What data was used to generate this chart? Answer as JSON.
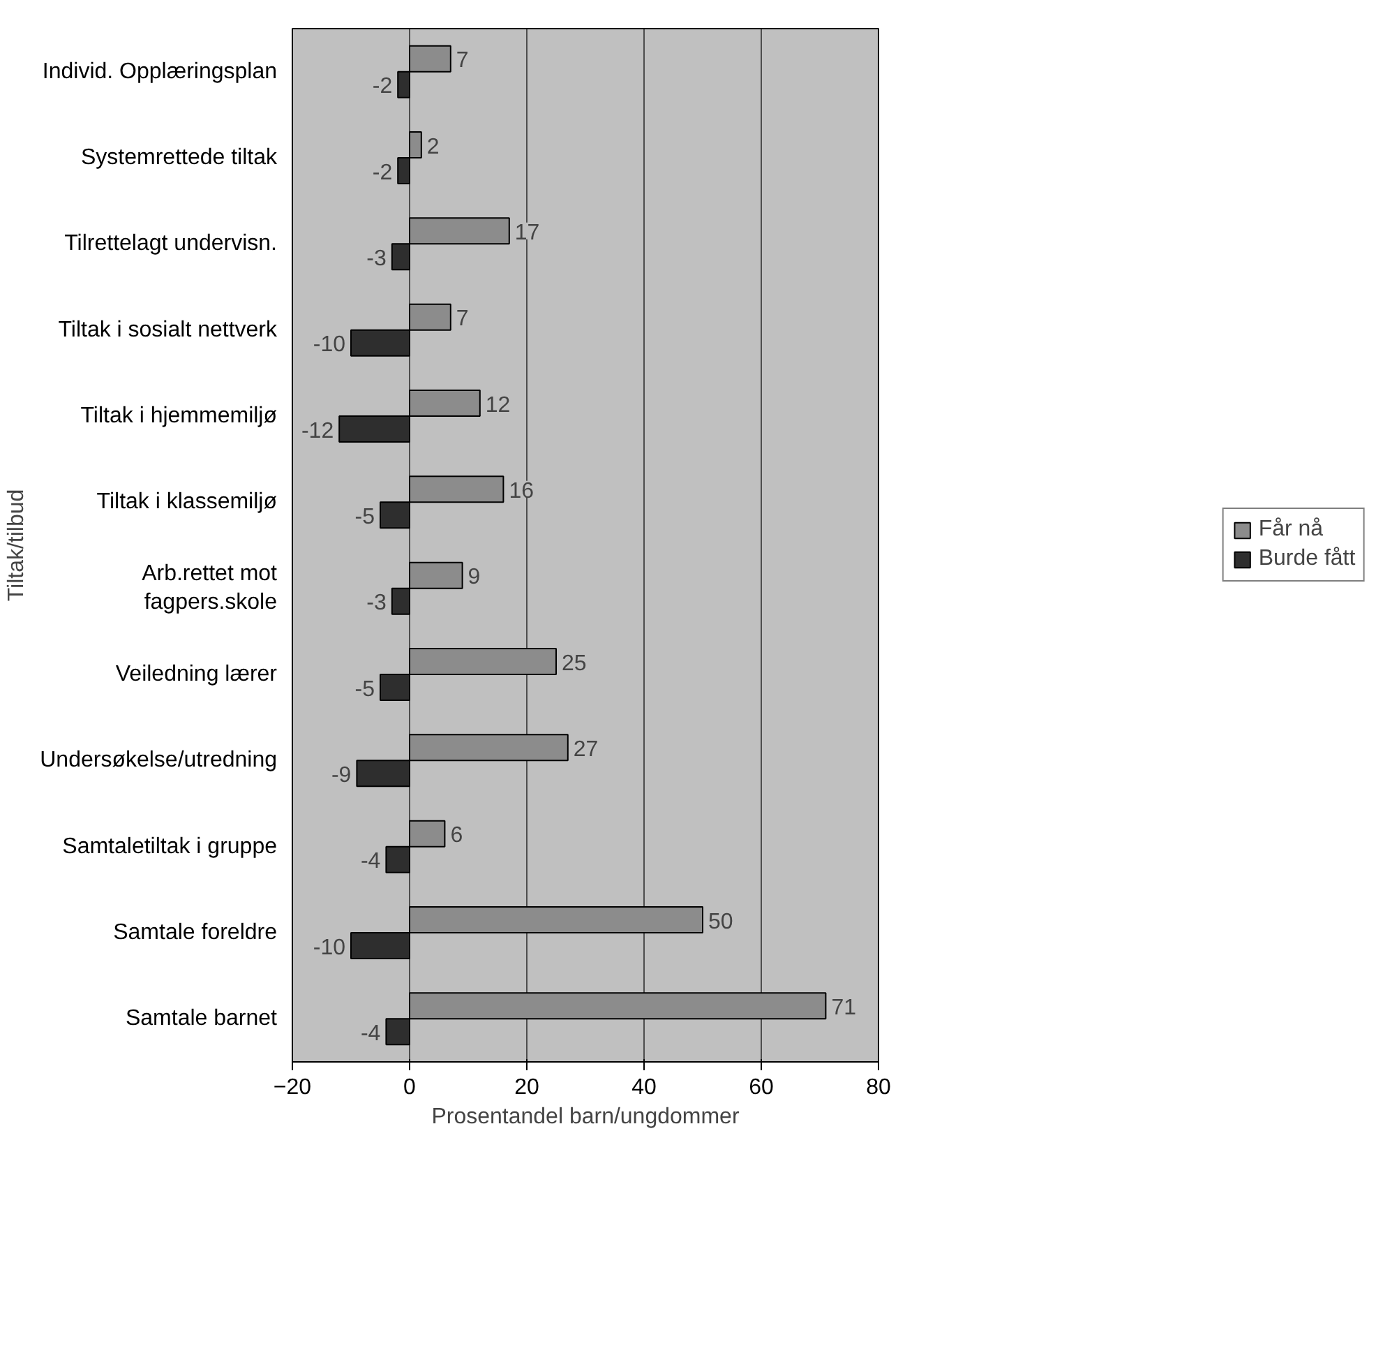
{
  "chart_data": {
    "type": "bar",
    "orientation": "horizontal",
    "categories": [
      "Individ. Opplæringsplan",
      "Systemrettede tiltak",
      "Tilrettelagt undervisn.",
      "Tiltak i sosialt nettverk",
      "Tiltak i hjemmemiljø",
      "Tiltak i klassemiljø",
      "Arb.rettet mot\nfagpers.skole",
      "Veiledning lærer",
      "Undersøkelse/utredning",
      "Samtaletiltak i gruppe",
      "Samtale foreldre",
      "Samtale barnet"
    ],
    "series": [
      {
        "name": "Får nå",
        "color": "#8c8c8c",
        "values": [
          7,
          2,
          17,
          7,
          12,
          16,
          9,
          25,
          27,
          6,
          50,
          71
        ]
      },
      {
        "name": "Burde fått",
        "color": "#2e2e2e",
        "values": [
          -2,
          -2,
          -3,
          -10,
          -12,
          -5,
          -3,
          -5,
          -9,
          -4,
          -10,
          -4
        ]
      }
    ],
    "xlim": [
      -20,
      80
    ],
    "xticks": [
      -20,
      0,
      20,
      40,
      60,
      80
    ],
    "xlabel": "Prosentandel barn/ungdommer",
    "ylabel": "Tiltak/tilbud",
    "grid": "x",
    "legend": "right",
    "data_labels": true
  }
}
